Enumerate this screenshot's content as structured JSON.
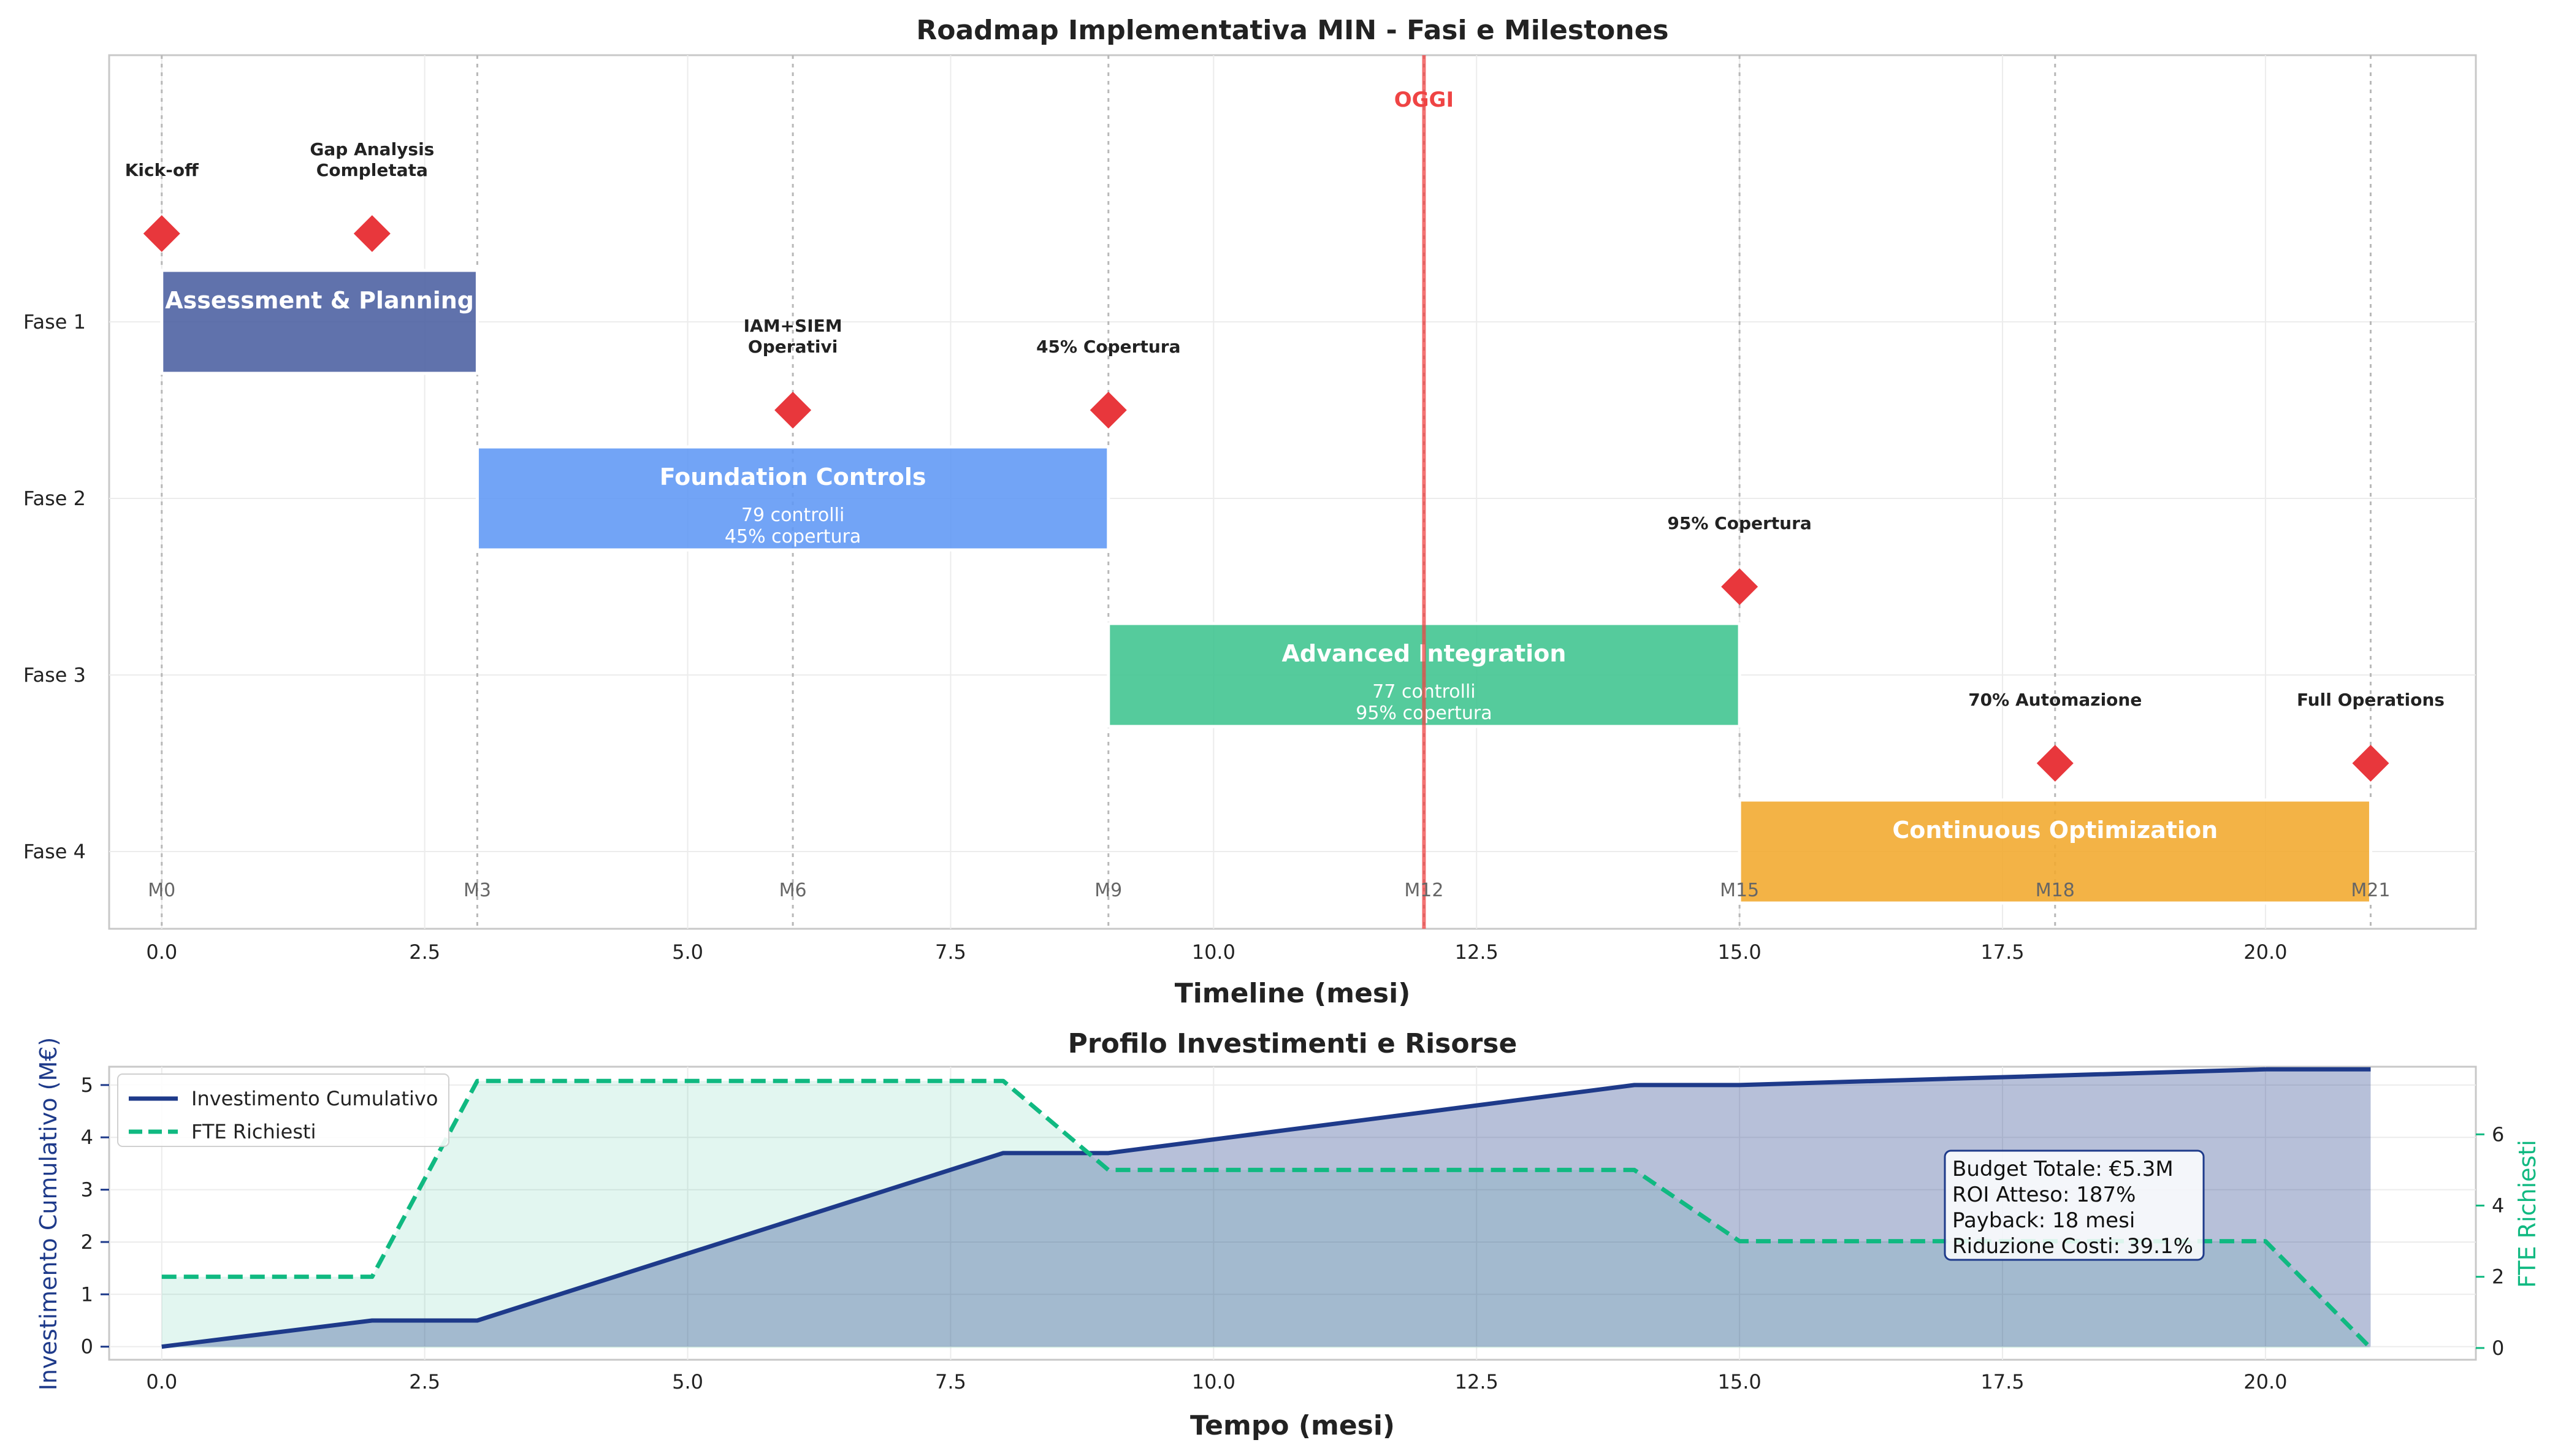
{
  "colors": {
    "phase1": "#4a5fa0",
    "phase2": "#5f97f5",
    "phase3": "#3ec48e",
    "phase4": "#f1a92c",
    "milestone": "#e8373c",
    "today": "#ef4444",
    "investment": "#1e3a8a",
    "fte": "#10b981",
    "month_label": "#666666"
  },
  "chart_data": [
    {
      "type": "gantt",
      "title": "Roadmap Implementativa MIN - Fasi e Milestones",
      "xlabel": "Timeline (mesi)",
      "ylabel": "",
      "xlim": [
        -0.5,
        22
      ],
      "xticks": [
        0.0,
        2.5,
        5.0,
        7.5,
        10.0,
        12.5,
        15.0,
        17.5,
        20.0
      ],
      "xtick_labels": [
        "0.0",
        "2.5",
        "5.0",
        "7.5",
        "10.0",
        "12.5",
        "15.0",
        "17.5",
        "20.0"
      ],
      "grid": true,
      "categories": [
        "Fase 1",
        "Fase 2",
        "Fase 3",
        "Fase 4"
      ],
      "phases": [
        {
          "row": 1,
          "name": "Assessment & Planning",
          "start": 0,
          "end": 3,
          "detail1": "",
          "detail2": "",
          "color": "#4a5fa0"
        },
        {
          "row": 2,
          "name": "Foundation Controls",
          "start": 3,
          "end": 9,
          "detail1": "79 controlli",
          "detail2": "45% copertura",
          "color": "#5f97f5"
        },
        {
          "row": 3,
          "name": "Advanced Integration",
          "start": 9,
          "end": 15,
          "detail1": "77 controlli",
          "detail2": "95% copertura",
          "color": "#3ec48e"
        },
        {
          "row": 4,
          "name": "Continuous Optimization",
          "start": 15,
          "end": 21,
          "detail1": "",
          "detail2": "",
          "color": "#f1a92c"
        }
      ],
      "milestones": [
        {
          "x": 0,
          "row": 0.5,
          "line1": "Kick-off",
          "line2": ""
        },
        {
          "x": 2,
          "row": 0.5,
          "line1": "Gap Analysis",
          "line2": "Completata"
        },
        {
          "x": 6,
          "row": 1.5,
          "line1": "IAM+SIEM",
          "line2": "Operativi"
        },
        {
          "x": 9,
          "row": 1.5,
          "line1": "45% Copertura",
          "line2": ""
        },
        {
          "x": 15,
          "row": 2.5,
          "line1": "95% Copertura",
          "line2": ""
        },
        {
          "x": 18,
          "row": 3.5,
          "line1": "70% Automazione",
          "line2": ""
        },
        {
          "x": 21,
          "row": 3.5,
          "line1": "Full Operations",
          "line2": ""
        }
      ],
      "month_markers": [
        {
          "x": 0,
          "label": "M0"
        },
        {
          "x": 3,
          "label": "M3"
        },
        {
          "x": 6,
          "label": "M6"
        },
        {
          "x": 9,
          "label": "M9"
        },
        {
          "x": 12,
          "label": "M12"
        },
        {
          "x": 15,
          "label": "M15"
        },
        {
          "x": 18,
          "label": "M18"
        },
        {
          "x": 21,
          "label": "M21"
        }
      ],
      "today": {
        "x": 12,
        "label": "OGGI"
      }
    },
    {
      "type": "line",
      "title": "Profilo Investimenti e Risorse",
      "xlabel": "Tempo (mesi)",
      "ylabel": "Investimento Cumulativo (M€)",
      "y2label": "FTE Richiesti",
      "xlim": [
        -0.5,
        22
      ],
      "ylim": [
        -0.25,
        5.35
      ],
      "y2lim": [
        -0.33,
        7.9
      ],
      "xticks": [
        0.0,
        2.5,
        5.0,
        7.5,
        10.0,
        12.5,
        15.0,
        17.5,
        20.0
      ],
      "xtick_labels": [
        "0.0",
        "2.5",
        "5.0",
        "7.5",
        "10.0",
        "12.5",
        "15.0",
        "17.5",
        "20.0"
      ],
      "yticks": [
        0,
        1,
        2,
        3,
        4,
        5
      ],
      "ytick_labels": [
        "0",
        "1",
        "2",
        "3",
        "4",
        "5"
      ],
      "y2ticks": [
        0,
        2,
        4,
        6
      ],
      "y2tick_labels": [
        "0",
        "2",
        "4",
        "6"
      ],
      "grid": true,
      "legend_position": "upper-left",
      "series": [
        {
          "name": "Investimento Cumulativo",
          "axis": "left",
          "style": "solid",
          "x": [
            0,
            2,
            3,
            8,
            9,
            14,
            15,
            20,
            21
          ],
          "values": [
            0,
            0.5,
            0.5,
            3.7,
            3.7,
            5.0,
            5.0,
            5.3,
            5.3
          ]
        },
        {
          "name": "FTE Richiesti",
          "axis": "right",
          "style": "dashed",
          "x": [
            0,
            2,
            3,
            8,
            9,
            14,
            15,
            20,
            21
          ],
          "values": [
            2,
            2,
            7.5,
            7.5,
            5,
            5,
            3,
            3,
            0
          ]
        }
      ],
      "info_box": [
        "Budget Totale: €5.3M",
        "ROI Atteso: 187%",
        "Payback: 18 mesi",
        "Riduzione Costi: 39.1%"
      ]
    }
  ]
}
